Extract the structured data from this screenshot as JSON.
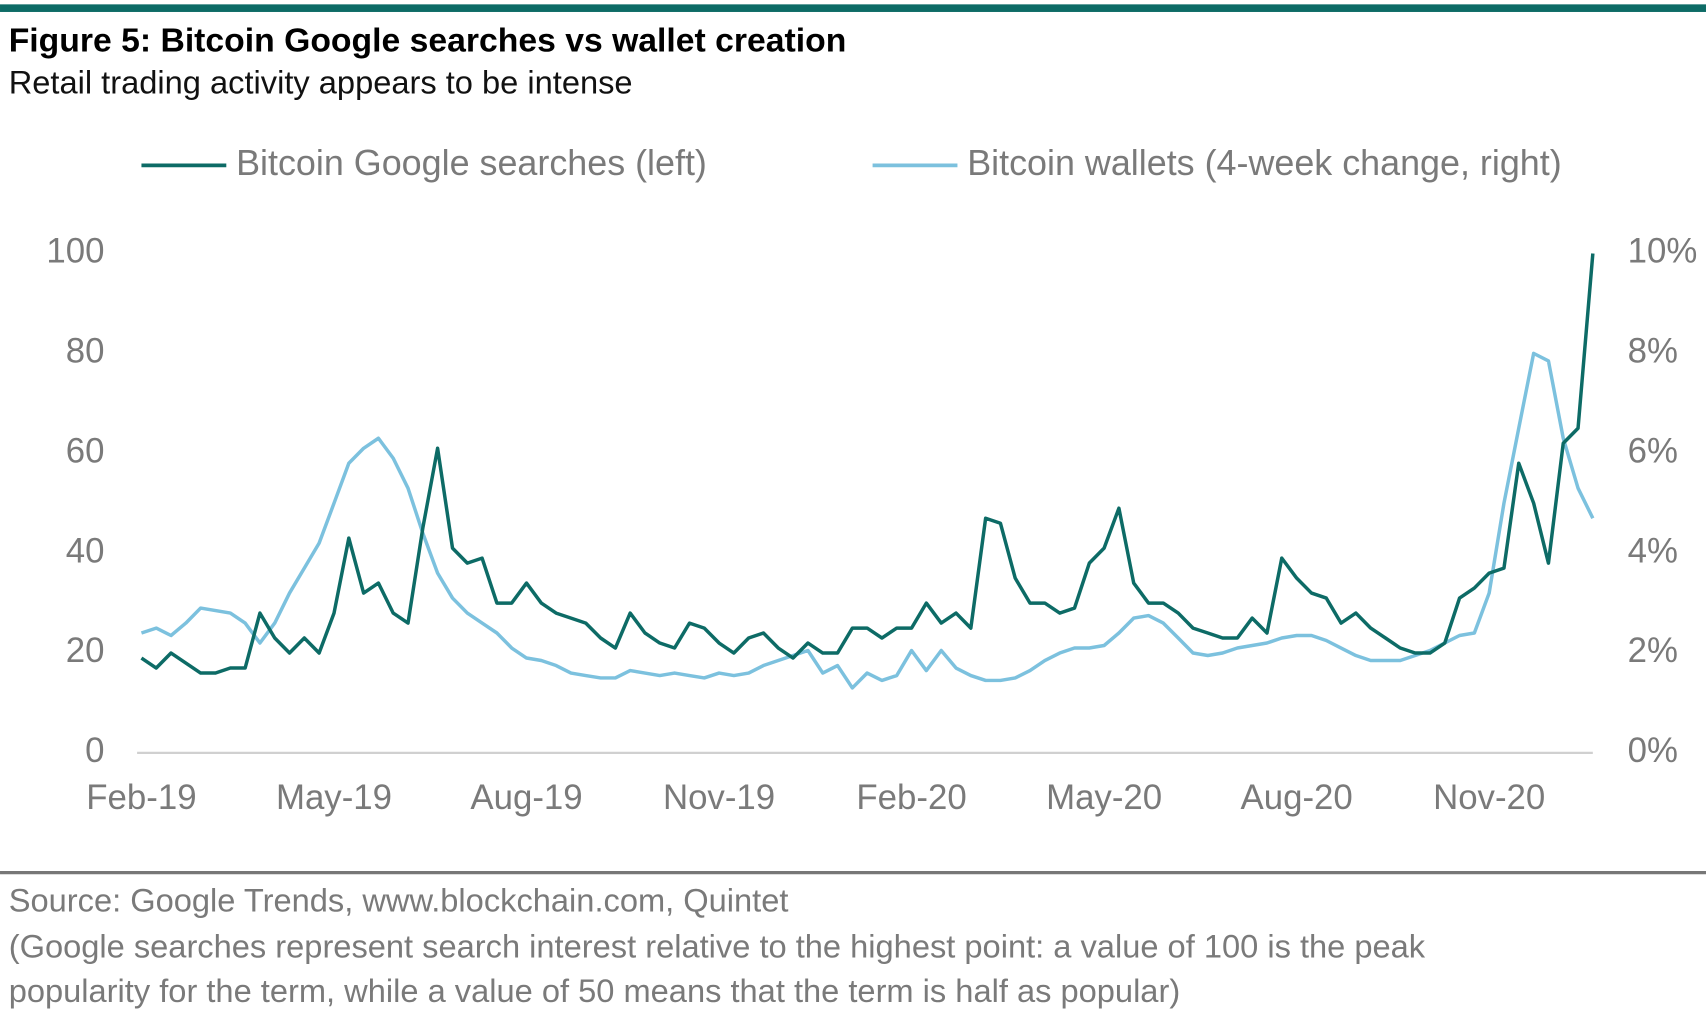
{
  "chart_data": {
    "type": "line",
    "title": "Figure 5: Bitcoin Google searches vs wallet creation",
    "subtitle": "Retail trading activity appears to be intense",
    "categories": [
      "Feb-19",
      null,
      null,
      null,
      null,
      null,
      null,
      null,
      null,
      null,
      null,
      null,
      null,
      "May-19",
      null,
      null,
      null,
      null,
      null,
      null,
      null,
      null,
      null,
      null,
      null,
      null,
      "Aug-19",
      null,
      null,
      null,
      null,
      null,
      null,
      null,
      null,
      null,
      null,
      null,
      null,
      "Nov-19",
      null,
      null,
      null,
      null,
      null,
      null,
      null,
      null,
      null,
      null,
      null,
      null,
      "Feb-20",
      null,
      null,
      null,
      null,
      null,
      null,
      null,
      null,
      null,
      null,
      null,
      null,
      "May-20",
      null,
      null,
      null,
      null,
      null,
      null,
      null,
      null,
      null,
      null,
      null,
      null,
      "Aug-20",
      null,
      null,
      null,
      null,
      null,
      null,
      null,
      null,
      null,
      null,
      null,
      null,
      "Nov-20",
      null,
      null,
      null,
      null,
      null,
      null,
      null
    ],
    "series": [
      {
        "name": "Bitcoin Google searches (left)",
        "color": "#0d6b66",
        "axis": "y",
        "values": [
          19,
          17,
          20,
          18,
          16,
          16,
          17,
          17,
          28,
          23,
          20,
          23,
          20,
          28,
          43,
          32,
          34,
          28,
          26,
          45,
          61,
          41,
          38,
          39,
          30,
          30,
          34,
          30,
          28,
          27,
          26,
          23,
          21,
          28,
          24,
          22,
          21,
          26,
          25,
          22,
          20,
          23,
          24,
          21,
          19,
          22,
          20,
          20,
          25,
          25,
          23,
          25,
          25,
          30,
          26,
          28,
          25,
          47,
          46,
          35,
          30,
          30,
          28,
          29,
          38,
          41,
          49,
          34,
          30,
          30,
          28,
          25,
          24,
          23,
          23,
          27,
          24,
          39,
          35,
          32,
          31,
          26,
          28,
          25,
          23,
          21,
          20,
          20,
          22,
          31,
          33,
          36,
          37,
          58,
          50,
          38,
          62,
          65,
          100
        ]
      },
      {
        "name": "Bitcoin wallets (4-week change, right)",
        "color": "#7cc1de",
        "axis": "y2",
        "values": [
          2.4,
          2.5,
          2.35,
          2.6,
          2.9,
          2.85,
          2.8,
          2.6,
          2.2,
          2.6,
          3.2,
          3.7,
          4.2,
          5.0,
          5.8,
          6.1,
          6.3,
          5.9,
          5.3,
          4.4,
          3.6,
          3.1,
          2.8,
          2.6,
          2.4,
          2.1,
          1.9,
          1.85,
          1.75,
          1.6,
          1.55,
          1.5,
          1.5,
          1.65,
          1.6,
          1.55,
          1.6,
          1.55,
          1.5,
          1.6,
          1.55,
          1.6,
          1.75,
          1.85,
          1.95,
          2.05,
          1.6,
          1.75,
          1.3,
          1.6,
          1.45,
          1.55,
          2.05,
          1.65,
          2.05,
          1.7,
          1.55,
          1.45,
          1.45,
          1.5,
          1.65,
          1.85,
          2.0,
          2.1,
          2.1,
          2.15,
          2.4,
          2.7,
          2.75,
          2.6,
          2.3,
          2.0,
          1.95,
          2.0,
          2.1,
          2.15,
          2.2,
          2.3,
          2.35,
          2.35,
          2.25,
          2.1,
          1.95,
          1.85,
          1.85,
          1.85,
          1.95,
          2.05,
          2.2,
          2.35,
          2.4,
          3.2,
          5.0,
          6.5,
          8.0,
          7.85,
          6.3,
          5.3,
          4.7
        ]
      }
    ],
    "ylim": [
      0,
      100
    ],
    "yticks": [
      0,
      20,
      40,
      60,
      80,
      100
    ],
    "y2lim": [
      0,
      10
    ],
    "y2ticks": [
      {
        "value": 0,
        "label": "0%"
      },
      {
        "value": 2,
        "label": "2%"
      },
      {
        "value": 4,
        "label": "4%"
      },
      {
        "value": 6,
        "label": "6%"
      },
      {
        "value": 8,
        "label": "8%"
      },
      {
        "value": 10,
        "label": "10%"
      }
    ],
    "grid": false,
    "legend": "top",
    "source": "Source: Google Trends, www.blockchain.com, Quintet",
    "note": [
      "(Google searches represent search interest relative to the highest point: a value of 100 is the peak",
      "popularity for the term, while a value of 50 means that the term is half as popular)"
    ]
  }
}
